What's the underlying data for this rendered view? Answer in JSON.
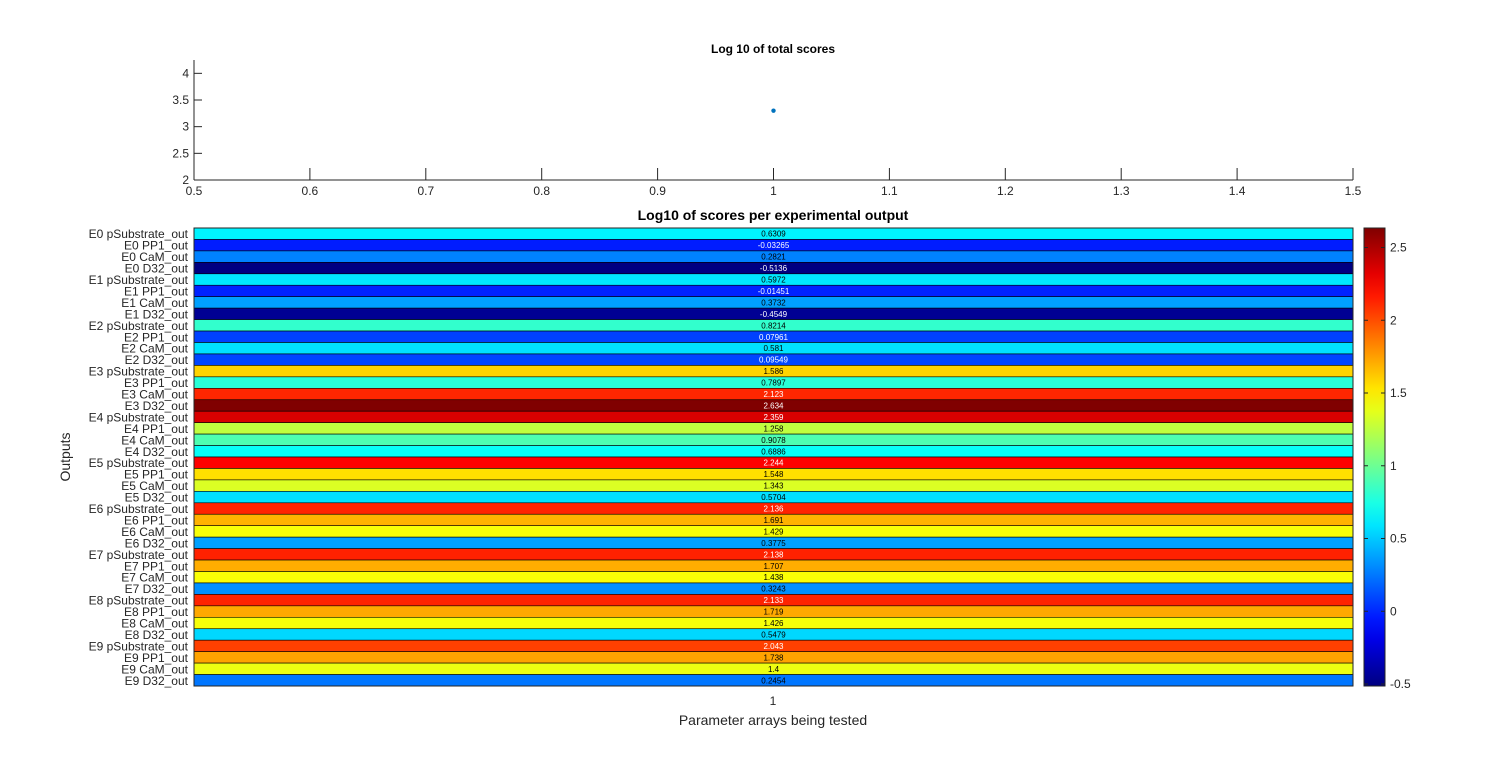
{
  "chart_data": [
    {
      "type": "scatter",
      "title": "Log 10 of total scores",
      "xlabel": "",
      "ylabel": "",
      "xlim": [
        0.5,
        1.5
      ],
      "ylim": [
        2,
        4.25
      ],
      "x_ticks": [
        "0.5",
        "0.6",
        "0.7",
        "0.8",
        "0.9",
        "1",
        "1.1",
        "1.2",
        "1.3",
        "1.4",
        "1.5"
      ],
      "y_ticks": [
        "2",
        "2.5",
        "3",
        "3.5",
        "4"
      ],
      "points": [
        {
          "x": 1,
          "y": 3.3
        }
      ],
      "marker_color": "#0072bd",
      "grid": false
    },
    {
      "type": "heatmap",
      "title": "Log10 of scores per experimental output",
      "xlabel": "Parameter arrays being tested",
      "ylabel": "Outputs",
      "columns": [
        "1"
      ],
      "rows": [
        "E0 pSubstrate_out",
        "E0 PP1_out",
        "E0 CaM_out",
        "E0 D32_out",
        "E1 pSubstrate_out",
        "E1 PP1_out",
        "E1 CaM_out",
        "E1 D32_out",
        "E2 pSubstrate_out",
        "E2 PP1_out",
        "E2 CaM_out",
        "E2 D32_out",
        "E3 pSubstrate_out",
        "E3 PP1_out",
        "E3 CaM_out",
        "E3 D32_out",
        "E4 pSubstrate_out",
        "E4 PP1_out",
        "E4 CaM_out",
        "E4 D32_out",
        "E5 pSubstrate_out",
        "E5 PP1_out",
        "E5 CaM_out",
        "E5 D32_out",
        "E6 pSubstrate_out",
        "E6 PP1_out",
        "E6 CaM_out",
        "E6 D32_out",
        "E7 pSubstrate_out",
        "E7 PP1_out",
        "E7 CaM_out",
        "E7 D32_out",
        "E8 pSubstrate_out",
        "E8 PP1_out",
        "E8 CaM_out",
        "E8 D32_out",
        "E9 pSubstrate_out",
        "E9 PP1_out",
        "E9 CaM_out",
        "E9 D32_out"
      ],
      "value_labels": [
        "0.6309",
        "-0.03265",
        "0.2821",
        "-0.5136",
        "0.5972",
        "-0.01451",
        "0.3732",
        "-0.4549",
        "0.8214",
        "0.07961",
        "0.581",
        "0.09549",
        "1.586",
        "0.7897",
        "2.123",
        "2.634",
        "2.359",
        "1.258",
        "0.9078",
        "0.6886",
        "2.244",
        "1.548",
        "1.343",
        "0.5704",
        "2.136",
        "1.691",
        "1.429",
        "0.3775",
        "2.138",
        "1.707",
        "1.438",
        "0.3243",
        "2.133",
        "1.719",
        "1.426",
        "0.5479",
        "2.043",
        "1.738",
        "1.4",
        "0.2454"
      ],
      "values": [
        0.6309,
        -0.03265,
        0.2821,
        -0.5136,
        0.5972,
        -0.01451,
        0.3732,
        -0.4549,
        0.8214,
        0.07961,
        0.581,
        0.09549,
        1.586,
        0.7897,
        2.123,
        2.634,
        2.359,
        1.258,
        0.9078,
        0.6886,
        2.244,
        1.548,
        1.343,
        0.5704,
        2.136,
        1.691,
        1.429,
        0.3775,
        2.138,
        1.707,
        1.438,
        0.3243,
        2.133,
        1.719,
        1.426,
        0.5479,
        2.043,
        1.738,
        1.4,
        0.2454
      ],
      "colormap": "jet",
      "colorbar": {
        "range": [
          -0.5136,
          2.634
        ],
        "ticks": [
          -0.5,
          0,
          0.5,
          1,
          1.5,
          2,
          2.5
        ],
        "tick_labels": [
          "-0.5",
          "0",
          "0.5",
          "1",
          "1.5",
          "2",
          "2.5"
        ]
      }
    }
  ]
}
